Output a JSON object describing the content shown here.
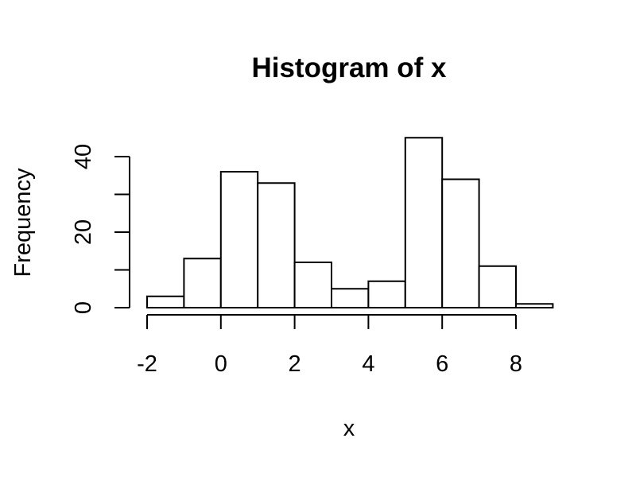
{
  "chart_data": {
    "type": "bar",
    "title": "Histogram of x",
    "xlabel": "x",
    "ylabel": "Frequency",
    "bin_edges": [
      -2,
      -1,
      0,
      1,
      2,
      3,
      4,
      5,
      6,
      7,
      8,
      9
    ],
    "values": [
      3,
      13,
      36,
      33,
      12,
      5,
      7,
      45,
      34,
      11,
      1
    ],
    "x_ticks": [
      -2,
      0,
      2,
      4,
      6,
      8
    ],
    "x_tick_labels": [
      "-2",
      "0",
      "2",
      "4",
      "6",
      "8"
    ],
    "y_ticks": [
      0,
      10,
      20,
      30,
      40
    ],
    "y_tick_labels": [
      "0",
      "",
      "20",
      "",
      "40"
    ],
    "xlim": [
      -2,
      9
    ],
    "ylim": [
      0,
      40
    ],
    "grid": false,
    "colors": {
      "bar_fill": "#ffffff",
      "bar_stroke": "#000000"
    }
  }
}
